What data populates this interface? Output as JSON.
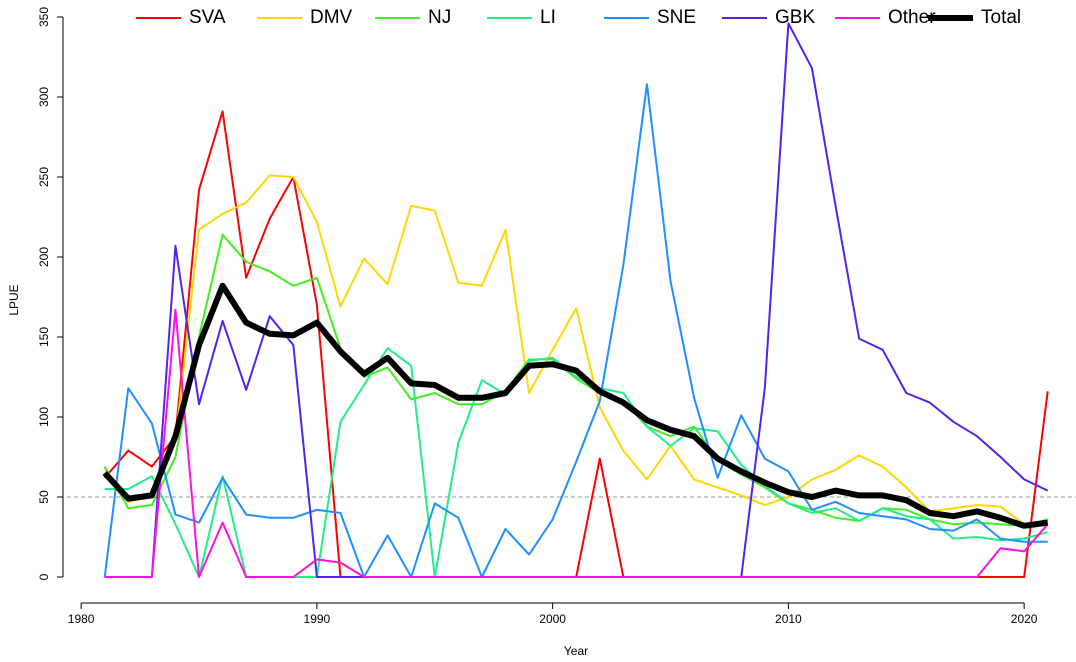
{
  "chart_data": {
    "type": "line",
    "x_label": "Year",
    "y_label": "LPUE",
    "x": [
      1981,
      1982,
      1983,
      1984,
      1985,
      1986,
      1987,
      1988,
      1989,
      1990,
      1991,
      1992,
      1993,
      1994,
      1995,
      1996,
      1997,
      1998,
      1999,
      2000,
      2001,
      2002,
      2003,
      2004,
      2005,
      2006,
      2007,
      2008,
      2009,
      2010,
      2011,
      2012,
      2013,
      2014,
      2015,
      2016,
      2017,
      2018,
      2019,
      2020,
      2021
    ],
    "xlim": [
      1979.4,
      2022.2
    ],
    "xticks": [
      1980,
      1990,
      2000,
      2010,
      2020
    ],
    "ylim": [
      -14,
      360
    ],
    "yticks": [
      0,
      50,
      100,
      150,
      200,
      250,
      300,
      350
    ],
    "hline": 50,
    "series": [
      {
        "name": "SVA",
        "color": "#ff0000",
        "line_width": 2,
        "values": [
          62,
          79,
          69,
          88,
          242,
          291,
          187,
          224,
          250,
          170,
          0,
          0,
          0,
          0,
          0,
          0,
          0,
          0,
          0,
          0,
          0,
          74,
          0,
          0,
          0,
          0,
          0,
          0,
          0,
          0,
          0,
          0,
          0,
          0,
          0,
          0,
          0,
          0,
          0,
          0,
          116
        ]
      },
      {
        "name": "DMV",
        "color": "#ffd700",
        "line_width": 2,
        "values": [
          68,
          47,
          50,
          85,
          217,
          227,
          234,
          251,
          250,
          222,
          169,
          199,
          183,
          232,
          229,
          184,
          182,
          217,
          115,
          142,
          168,
          106,
          79,
          61,
          82,
          61,
          56,
          51,
          45,
          50,
          61,
          67,
          76,
          69,
          56,
          41,
          43,
          45,
          44,
          33,
          35
        ]
      },
      {
        "name": "NJ",
        "color": "#44ee22",
        "line_width": 2,
        "values": [
          69,
          43,
          45,
          75,
          150,
          214,
          197,
          191,
          182,
          187,
          143,
          125,
          131,
          111,
          115,
          108,
          108,
          116,
          136,
          136,
          124,
          115,
          110,
          94,
          88,
          94,
          73,
          64,
          56,
          46,
          42,
          37,
          35,
          43,
          42,
          36,
          33,
          34,
          33,
          32,
          36
        ]
      },
      {
        "name": "LI",
        "color": "#22ee88",
        "line_width": 2,
        "values": [
          55,
          55,
          63,
          33,
          0,
          63,
          0,
          0,
          0,
          0,
          97,
          120,
          143,
          132,
          0,
          84,
          123,
          114,
          135,
          137,
          125,
          118,
          115,
          94,
          82,
          93,
          91,
          70,
          57,
          46,
          40,
          43,
          35,
          43,
          38,
          36,
          24,
          25,
          23,
          24,
          28
        ]
      },
      {
        "name": "SNE",
        "color": "#1e90ff",
        "line_width": 2,
        "values": [
          0,
          118,
          96,
          39,
          34,
          62,
          39,
          37,
          37,
          42,
          40,
          0,
          26,
          0,
          46,
          37,
          0,
          30,
          14,
          36,
          72,
          110,
          195,
          308,
          185,
          112,
          62,
          101,
          74,
          66,
          42,
          47,
          40,
          38,
          36,
          30,
          29,
          36,
          24,
          22,
          22
        ]
      },
      {
        "name": "GBK",
        "color": "#5522ee",
        "line_width": 2,
        "values": [
          0,
          0,
          0,
          207,
          108,
          160,
          117,
          163,
          145,
          0,
          0,
          0,
          0,
          0,
          0,
          0,
          0,
          0,
          0,
          0,
          0,
          0,
          0,
          0,
          0,
          0,
          0,
          0,
          118,
          346,
          318,
          232,
          149,
          142,
          115,
          109,
          97,
          88,
          75,
          61,
          54
        ]
      },
      {
        "name": "Other",
        "color": "#ff11dd",
        "line_width": 2,
        "values": [
          0,
          0,
          0,
          167,
          0,
          34,
          0,
          0,
          0,
          11,
          9,
          0,
          0,
          0,
          0,
          0,
          0,
          0,
          0,
          0,
          0,
          0,
          0,
          0,
          0,
          0,
          0,
          0,
          0,
          0,
          0,
          0,
          0,
          0,
          0,
          0,
          0,
          0,
          18,
          16,
          33
        ]
      },
      {
        "name": "Total",
        "color": "#000000",
        "line_width": 6,
        "values": [
          65,
          49,
          51,
          88,
          145,
          182,
          159,
          152,
          151,
          159,
          141,
          127,
          137,
          121,
          120,
          112,
          112,
          115,
          132,
          133,
          129,
          116,
          109,
          98,
          92,
          88,
          74,
          66,
          59,
          53,
          50,
          54,
          51,
          51,
          48,
          40,
          38,
          41,
          37,
          32,
          34
        ]
      }
    ]
  }
}
